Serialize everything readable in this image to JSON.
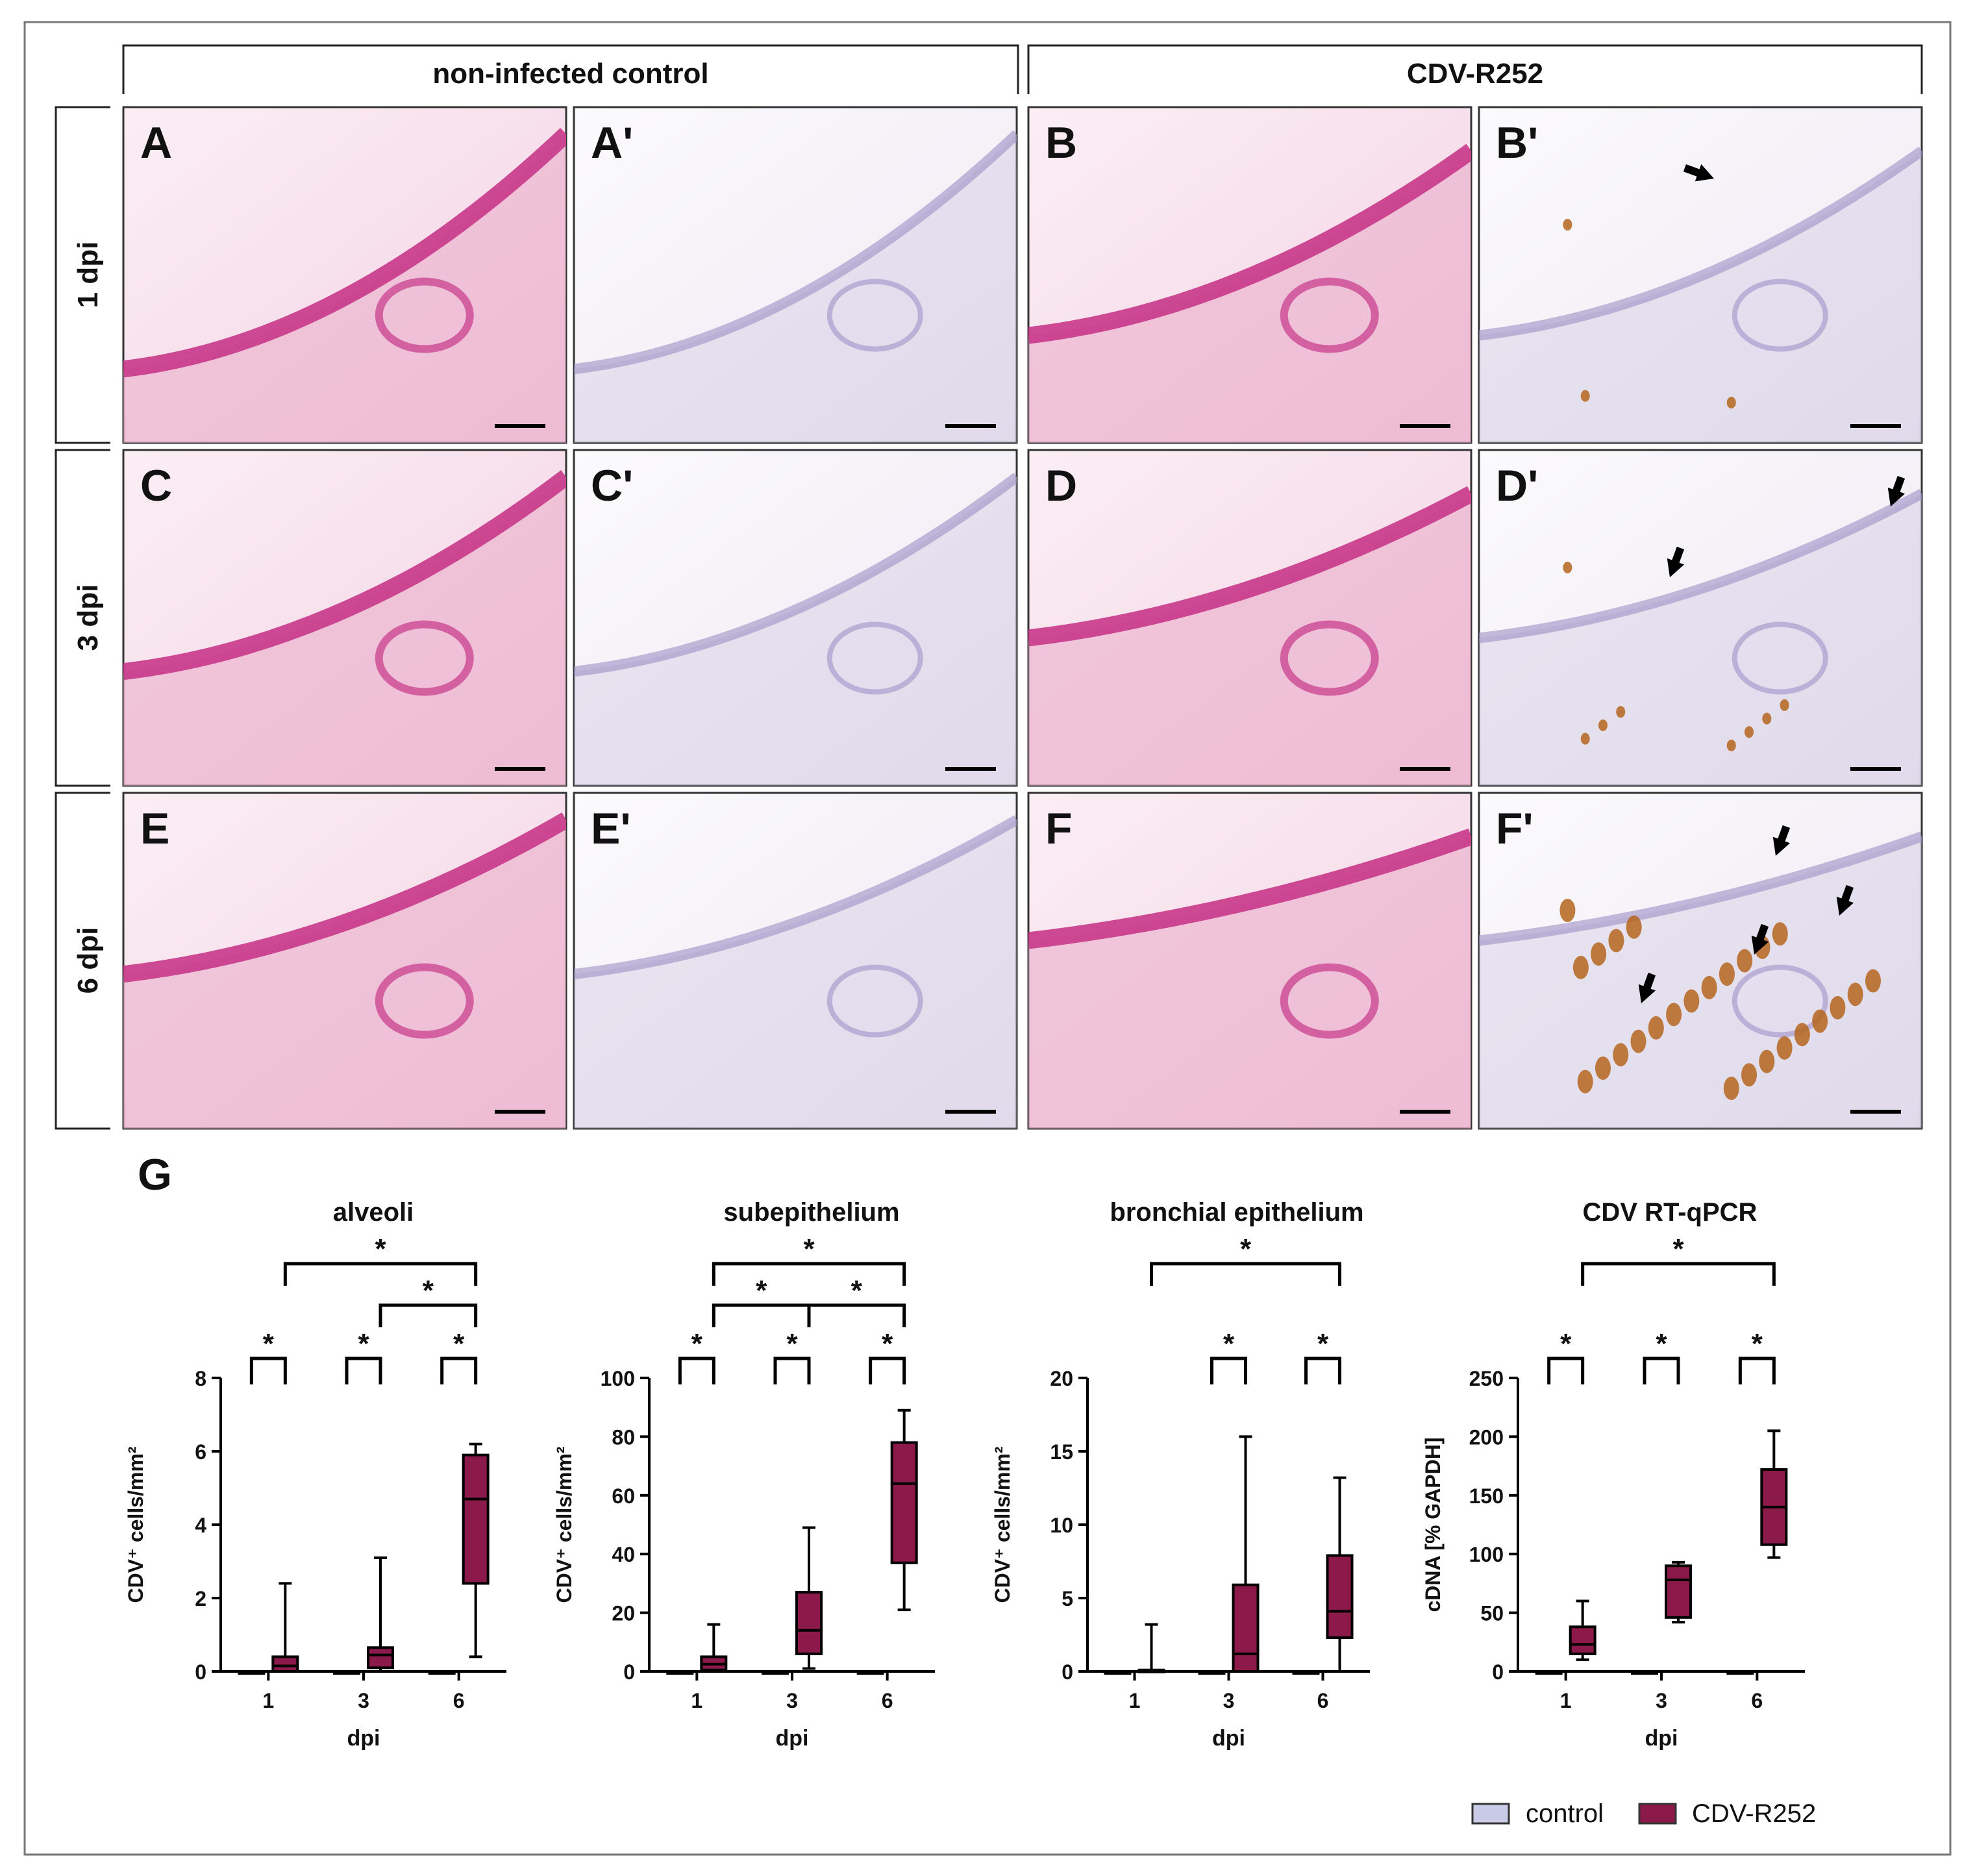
{
  "figure": {
    "group_labels": [
      "non-infected control",
      "CDV-R252"
    ],
    "row_labels": [
      "1 dpi",
      "3 dpi",
      "6 dpi"
    ],
    "panel_labels": [
      [
        "A",
        "A'",
        "B",
        "B'"
      ],
      [
        "C",
        "C'",
        "D",
        "D'"
      ],
      [
        "E",
        "E'",
        "F",
        "F'"
      ]
    ],
    "graph_panel_label": "G",
    "significance_mark": "*",
    "legend": [
      {
        "label": "control",
        "color": "#c9c9e8"
      },
      {
        "label": "CDV-R252",
        "color": "#8b1a4a"
      }
    ],
    "colors": {
      "he_background": "#f7e6ef",
      "he_epithelium": "#c8378a",
      "he_tissue": "#e9a9c8",
      "ihc_background": "#f6f4f8",
      "ihc_tissue": "#c9c0dc",
      "ihc_positive": "#b5651d",
      "box_fill": "#8b1a4a",
      "control_fill": "#c9c9e8"
    }
  },
  "chart_data": [
    {
      "type": "box",
      "title": "alveoli",
      "xlabel": "dpi",
      "ylabel": "CDV⁺ cells/mm²",
      "categories": [
        "1",
        "3",
        "6"
      ],
      "ylim": [
        0,
        8
      ],
      "yticks": [
        "0",
        "2",
        "4",
        "6",
        "8"
      ],
      "series": [
        {
          "name": "control",
          "boxes": [
            [
              0,
              0,
              0,
              0,
              0
            ],
            [
              0,
              0,
              0,
              0,
              0
            ],
            [
              0,
              0,
              0,
              0,
              0
            ]
          ]
        },
        {
          "name": "CDV-R252",
          "boxes": [
            [
              0,
              0,
              0.15,
              0.4,
              2.4
            ],
            [
              0,
              0.1,
              0.45,
              0.65,
              3.1
            ],
            [
              0.4,
              2.4,
              4.7,
              5.9,
              6.2
            ]
          ]
        }
      ],
      "significance": [
        {
          "from": [
            0,
            0
          ],
          "to": [
            0,
            1
          ],
          "level": 0
        },
        {
          "from": [
            1,
            0
          ],
          "to": [
            1,
            1
          ],
          "level": 0
        },
        {
          "from": [
            2,
            0
          ],
          "to": [
            2,
            1
          ],
          "level": 0
        },
        {
          "from": [
            1,
            1
          ],
          "to": [
            2,
            1
          ],
          "level": 1
        },
        {
          "from": [
            0,
            1
          ],
          "to": [
            2,
            1
          ],
          "level": 2
        }
      ]
    },
    {
      "type": "box",
      "title": "subepithelium",
      "xlabel": "dpi",
      "ylabel": "CDV⁺ cells/mm²",
      "categories": [
        "1",
        "3",
        "6"
      ],
      "ylim": [
        0,
        100
      ],
      "yticks": [
        "0",
        "20",
        "40",
        "60",
        "80",
        "100"
      ],
      "series": [
        {
          "name": "control",
          "boxes": [
            [
              0,
              0,
              0,
              0,
              0
            ],
            [
              0,
              0,
              0,
              0,
              0
            ],
            [
              0,
              0,
              0,
              0,
              0
            ]
          ]
        },
        {
          "name": "CDV-R252",
          "boxes": [
            [
              0,
              0.5,
              2.5,
              5,
              16
            ],
            [
              1,
              6,
              14,
              27,
              49
            ],
            [
              21,
              37,
              64,
              78,
              89
            ]
          ]
        }
      ],
      "significance": [
        {
          "from": [
            0,
            0
          ],
          "to": [
            0,
            1
          ],
          "level": 0
        },
        {
          "from": [
            1,
            0
          ],
          "to": [
            1,
            1
          ],
          "level": 0
        },
        {
          "from": [
            2,
            0
          ],
          "to": [
            2,
            1
          ],
          "level": 0
        },
        {
          "from": [
            0,
            1
          ],
          "to": [
            1,
            1
          ],
          "level": 1
        },
        {
          "from": [
            1,
            1
          ],
          "to": [
            2,
            1
          ],
          "level": 1
        },
        {
          "from": [
            0,
            1
          ],
          "to": [
            2,
            1
          ],
          "level": 2
        }
      ]
    },
    {
      "type": "box",
      "title": "bronchial epithelium",
      "xlabel": "dpi",
      "ylabel": "CDV⁺ cells/mm²",
      "categories": [
        "1",
        "3",
        "6"
      ],
      "ylim": [
        0,
        20
      ],
      "yticks": [
        "0",
        "5",
        "10",
        "15",
        "20"
      ],
      "series": [
        {
          "name": "control",
          "boxes": [
            [
              0,
              0,
              0,
              0,
              0
            ],
            [
              0,
              0,
              0,
              0,
              0
            ],
            [
              0,
              0,
              0,
              0,
              0
            ]
          ]
        },
        {
          "name": "CDV-R252",
          "boxes": [
            [
              0,
              0,
              0,
              0.1,
              3.2
            ],
            [
              0,
              0,
              1.2,
              5.9,
              16
            ],
            [
              0,
              2.3,
              4.1,
              7.9,
              13.2
            ]
          ]
        }
      ],
      "significance": [
        {
          "from": [
            1,
            0
          ],
          "to": [
            1,
            1
          ],
          "level": 0
        },
        {
          "from": [
            2,
            0
          ],
          "to": [
            2,
            1
          ],
          "level": 0
        },
        {
          "from": [
            0,
            1
          ],
          "to": [
            2,
            1
          ],
          "level": 2
        }
      ]
    },
    {
      "type": "box",
      "title": "CDV RT-qPCR",
      "xlabel": "dpi",
      "ylabel": "cDNA [% GAPDH]",
      "categories": [
        "1",
        "3",
        "6"
      ],
      "ylim": [
        0,
        250
      ],
      "yticks": [
        "0",
        "50",
        "100",
        "150",
        "200",
        "250"
      ],
      "series": [
        {
          "name": "control",
          "boxes": [
            [
              0,
              0,
              0,
              0,
              0
            ],
            [
              0,
              0,
              0,
              0,
              0
            ],
            [
              0,
              0,
              0,
              0,
              0
            ]
          ]
        },
        {
          "name": "CDV-R252",
          "boxes": [
            [
              10,
              15,
              23,
              38,
              60
            ],
            [
              42,
              46,
              78,
              90,
              93
            ],
            [
              97,
              108,
              140,
              172,
              205
            ]
          ]
        }
      ],
      "significance": [
        {
          "from": [
            0,
            0
          ],
          "to": [
            0,
            1
          ],
          "level": 0
        },
        {
          "from": [
            1,
            0
          ],
          "to": [
            1,
            1
          ],
          "level": 0
        },
        {
          "from": [
            2,
            0
          ],
          "to": [
            2,
            1
          ],
          "level": 0
        },
        {
          "from": [
            0,
            1
          ],
          "to": [
            2,
            1
          ],
          "level": 2
        }
      ]
    }
  ]
}
